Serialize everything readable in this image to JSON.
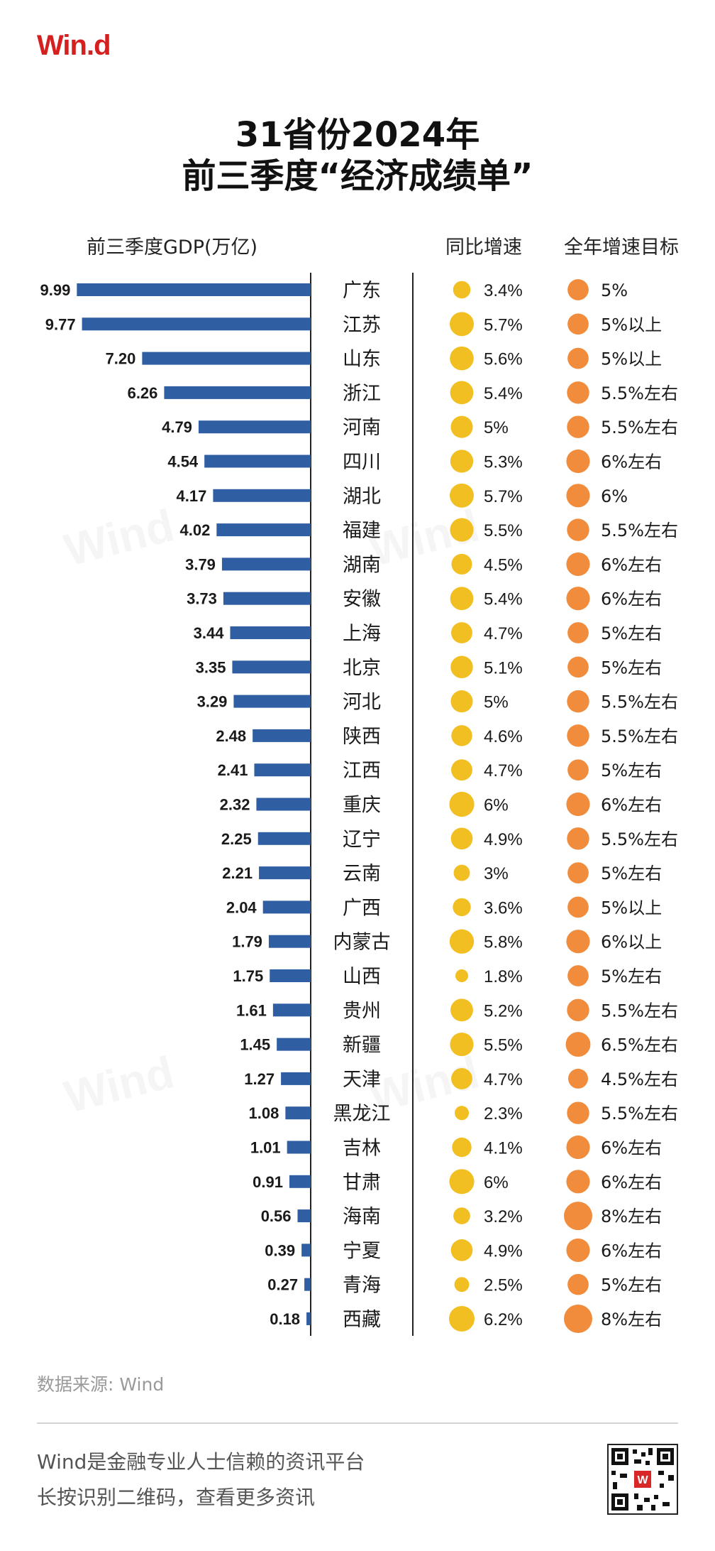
{
  "brand": {
    "logo_text": "Win.d",
    "logo_color": "#d61f1f"
  },
  "title": {
    "line1": "31省份2024年",
    "line2": "前三季度“经济成绩单”"
  },
  "headers": {
    "gdp": "前三季度GDP(万亿)",
    "growth": "同比增速",
    "target": "全年增速目标"
  },
  "colors": {
    "bar": "#2f5ea3",
    "growth_dot": "#f2bf22",
    "target_dot": "#f08c3c",
    "axis": "#222222"
  },
  "chart_data": {
    "type": "bar",
    "orientation": "horizontal",
    "categories": [
      "广东",
      "江苏",
      "山东",
      "浙江",
      "河南",
      "四川",
      "湖北",
      "福建",
      "湖南",
      "安徽",
      "上海",
      "北京",
      "河北",
      "陕西",
      "江西",
      "重庆",
      "辽宁",
      "云南",
      "广西",
      "内蒙古",
      "山西",
      "贵州",
      "新疆",
      "天津",
      "黑龙江",
      "吉林",
      "甘肃",
      "海南",
      "宁夏",
      "青海",
      "西藏"
    ],
    "series": [
      {
        "values": [
          9.99,
          9.77,
          7.2,
          6.26,
          4.79,
          4.54,
          4.17,
          4.02,
          3.79,
          3.73,
          3.44,
          3.35,
          3.29,
          2.48,
          2.41,
          2.32,
          2.25,
          2.21,
          2.04,
          1.79,
          1.75,
          1.61,
          1.45,
          1.27,
          1.08,
          1.01,
          0.91,
          0.56,
          0.39,
          0.27,
          0.18
        ],
        "labels": [
          "9.99",
          "9.77",
          "7.20",
          "6.26",
          "4.79",
          "4.54",
          "4.17",
          "4.02",
          "3.79",
          "3.73",
          "3.44",
          "3.35",
          "3.29",
          "2.48",
          "2.41",
          "2.32",
          "2.25",
          "2.21",
          "2.04",
          "1.79",
          "1.75",
          "1.61",
          "1.45",
          "1.27",
          "1.08",
          "1.01",
          "0.91",
          "0.56",
          "0.39",
          "0.27",
          "0.18"
        ]
      }
    ],
    "growth": [
      3.4,
      5.7,
      5.6,
      5.4,
      5,
      5.3,
      5.7,
      5.5,
      4.5,
      5.4,
      4.7,
      5.1,
      5,
      4.6,
      4.7,
      6,
      4.9,
      3,
      3.6,
      5.8,
      1.8,
      5.2,
      5.5,
      4.7,
      2.3,
      4.1,
      6,
      3.2,
      4.9,
      2.5,
      6.2
    ],
    "growth_labels": [
      "3.4%",
      "5.7%",
      "5.6%",
      "5.4%",
      "5%",
      "5.3%",
      "5.7%",
      "5.5%",
      "4.5%",
      "5.4%",
      "4.7%",
      "5.1%",
      "5%",
      "4.6%",
      "4.7%",
      "6%",
      "4.9%",
      "3%",
      "3.6%",
      "5.8%",
      "1.8%",
      "5.2%",
      "5.5%",
      "4.7%",
      "2.3%",
      "4.1%",
      "6%",
      "3.2%",
      "4.9%",
      "2.5%",
      "6.2%"
    ],
    "target": [
      5,
      5,
      5,
      5.5,
      5.5,
      6,
      6,
      5.5,
      6,
      6,
      5,
      5,
      5.5,
      5.5,
      5,
      6,
      5.5,
      5,
      5,
      6,
      5,
      5.5,
      6.5,
      4.5,
      5.5,
      6,
      6,
      8,
      6,
      5,
      8
    ],
    "target_labels": [
      "5%",
      "5%以上",
      "5%以上",
      "5.5%左右",
      "5.5%左右",
      "6%左右",
      "6%",
      "5.5%左右",
      "6%左右",
      "6%左右",
      "5%左右",
      "5%左右",
      "5.5%左右",
      "5.5%左右",
      "5%左右",
      "6%左右",
      "5.5%左右",
      "5%左右",
      "5%以上",
      "6%以上",
      "5%左右",
      "5.5%左右",
      "6.5%左右",
      "4.5%左右",
      "5.5%左右",
      "6%左右",
      "6%左右",
      "8%左右",
      "6%左右",
      "5%左右",
      "8%左右"
    ],
    "xlim": [
      0,
      10
    ]
  },
  "source": "数据来源: Wind",
  "footer": {
    "line1": "Wind是金融专业人士信赖的资讯平台",
    "line2": "长按识别二维码，查看更多资讯"
  },
  "icons": {
    "qr": "qr-code-icon"
  }
}
